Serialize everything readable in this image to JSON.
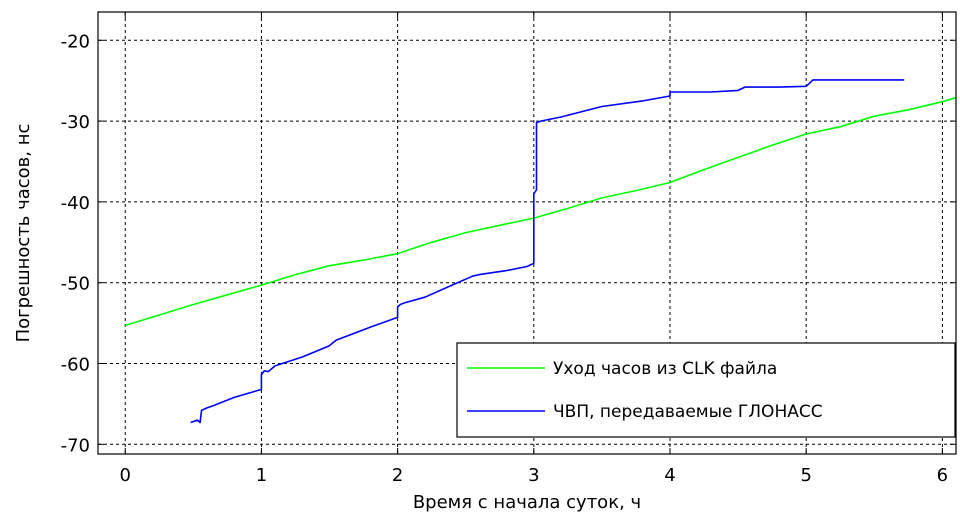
{
  "chart_data": {
    "type": "line",
    "xlabel": "Время с начала суток, ч",
    "ylabel": "Погрешность часов, нс",
    "xlim": [
      -0.2,
      6.1
    ],
    "ylim": [
      -71.2,
      -16.5
    ],
    "xticks": [
      0,
      1,
      2,
      3,
      4,
      5,
      6
    ],
    "yticks": [
      -70,
      -60,
      -50,
      -40,
      -30,
      -20
    ],
    "xtick_labels": [
      "0",
      "1",
      "2",
      "3",
      "4",
      "5",
      "6"
    ],
    "ytick_labels": [
      "-70",
      "-60",
      "-50",
      "-40",
      "-30",
      "-20"
    ],
    "grid": true,
    "grid_style": "dashed",
    "legend_position": "bottom-right",
    "series": [
      {
        "name": "Уход часов из CLK файла",
        "color": "#00ff00",
        "x": [
          0.0,
          0.25,
          0.5,
          0.75,
          1.0,
          1.25,
          1.5,
          1.75,
          2.0,
          2.25,
          2.5,
          2.75,
          3.0,
          3.25,
          3.5,
          3.75,
          4.0,
          4.25,
          4.5,
          4.75,
          5.0,
          5.25,
          5.5,
          5.75,
          6.0,
          6.1
        ],
        "y": [
          -55.3,
          -54.0,
          -52.7,
          -51.5,
          -50.3,
          -49.0,
          -47.9,
          -47.2,
          -46.4,
          -45.0,
          -43.8,
          -42.9,
          -42.0,
          -40.8,
          -39.5,
          -38.6,
          -37.6,
          -36.0,
          -34.5,
          -33.0,
          -31.6,
          -30.7,
          -29.4,
          -28.6,
          -27.6,
          -27.1
        ]
      },
      {
        "name": "ЧВП, передаваемые ГЛОНАСС",
        "color": "#0000ff",
        "x": [
          0.48,
          0.53,
          0.55,
          0.56,
          0.6,
          0.65,
          0.8,
          1.0,
          1.0,
          1.02,
          1.05,
          1.1,
          1.3,
          1.5,
          1.52,
          1.55,
          1.8,
          2.0,
          2.0,
          2.02,
          2.05,
          2.2,
          2.4,
          2.55,
          2.6,
          2.8,
          2.95,
          3.0,
          3.0,
          3.02,
          3.02,
          3.05,
          3.2,
          3.5,
          3.8,
          4.0,
          4.0,
          4.3,
          4.5,
          4.55,
          4.8,
          5.0,
          5.05,
          5.3,
          5.5,
          5.72
        ],
        "y": [
          -67.3,
          -67.0,
          -67.3,
          -65.8,
          -65.5,
          -65.2,
          -64.2,
          -63.2,
          -61.4,
          -60.9,
          -61.0,
          -60.3,
          -59.2,
          -57.8,
          -57.5,
          -57.1,
          -55.5,
          -54.3,
          -53.0,
          -52.7,
          -52.5,
          -51.8,
          -50.3,
          -49.2,
          -49.0,
          -48.5,
          -48.0,
          -47.6,
          -39.0,
          -38.5,
          -30.2,
          -30.0,
          -29.5,
          -28.2,
          -27.5,
          -26.9,
          -26.4,
          -26.4,
          -26.2,
          -25.8,
          -25.8,
          -25.7,
          -24.9,
          -24.9,
          -24.9,
          -24.9
        ]
      }
    ]
  }
}
